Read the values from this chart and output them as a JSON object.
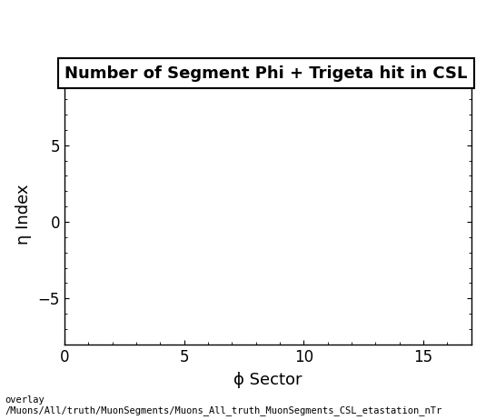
{
  "title": "Number of Segment Phi + Trigeta hit in CSL",
  "xlabel": "ϕ Sector",
  "ylabel": "η Index",
  "xlim": [
    0,
    17
  ],
  "ylim": [
    -8,
    9
  ],
  "xticks": [
    0,
    5,
    10,
    15
  ],
  "yticks": [
    -5,
    0,
    5
  ],
  "background_color": "#ffffff",
  "plot_bg_color": "#ffffff",
  "footer_text": "overlay\n/Muons/All/truth/MuonSegments/Muons_All_truth_MuonSegments_CSL_etastation_nTr",
  "title_fontsize": 13,
  "axis_label_fontsize": 13,
  "tick_fontsize": 12,
  "footer_fontsize": 7.5,
  "title_box_color": "#ffffff",
  "title_box_edge": "#000000"
}
